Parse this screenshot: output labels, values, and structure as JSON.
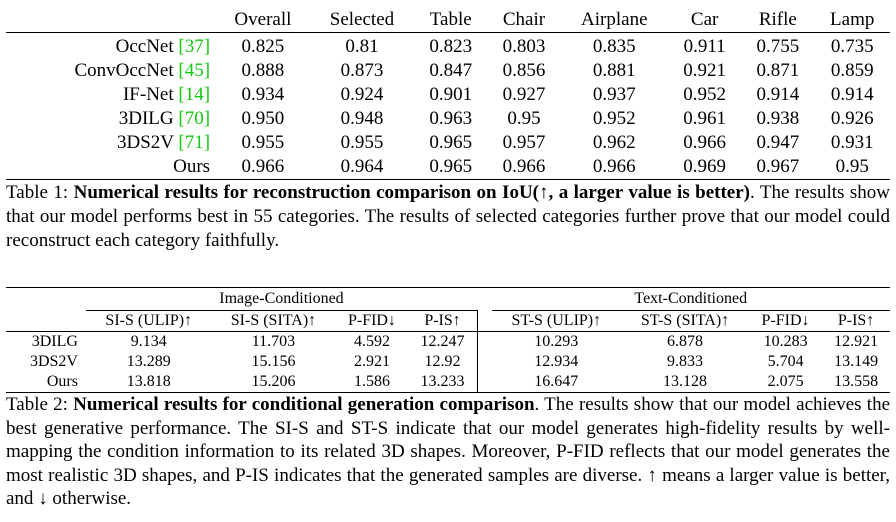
{
  "table1": {
    "headers": [
      "Overall",
      "Selected",
      "Table",
      "Chair",
      "Airplane",
      "Car",
      "Rifle",
      "Lamp"
    ],
    "rows": [
      {
        "name": "OccNet",
        "cite": "[37]",
        "values": [
          "0.825",
          "0.81",
          "0.823",
          "0.803",
          "0.835",
          "0.911",
          "0.755",
          "0.735"
        ]
      },
      {
        "name": "ConvOccNet",
        "cite": "[45]",
        "values": [
          "0.888",
          "0.873",
          "0.847",
          "0.856",
          "0.881",
          "0.921",
          "0.871",
          "0.859"
        ]
      },
      {
        "name": "IF-Net",
        "cite": "[14]",
        "values": [
          "0.934",
          "0.924",
          "0.901",
          "0.927",
          "0.937",
          "0.952",
          "0.914",
          "0.914"
        ]
      },
      {
        "name": "3DILG",
        "cite": "[70]",
        "values": [
          "0.950",
          "0.948",
          "0.963",
          "0.95",
          "0.952",
          "0.961",
          "0.938",
          "0.926"
        ]
      },
      {
        "name": "3DS2V",
        "cite": "[71]",
        "values": [
          "0.955",
          "0.955",
          "0.965",
          "0.957",
          "0.962",
          "0.966",
          "0.947",
          "0.931"
        ]
      },
      {
        "name": "Ours",
        "cite": "",
        "values": [
          "0.966",
          "0.964",
          "0.965",
          "0.966",
          "0.966",
          "0.969",
          "0.967",
          "0.95"
        ]
      }
    ],
    "caption_label": "Table 1:",
    "caption_bold": "Numerical results for reconstruction comparison on IoU(↑, a larger value is better)",
    "caption_rest": ". The results show that our model performs best in 55 categories. The results of selected categories further prove that our model could reconstruct each category faithfully."
  },
  "table2": {
    "group_image": "Image-Conditioned",
    "group_text": "Text-Conditioned",
    "image_cols": [
      "SI-S (ULIP)↑",
      "SI-S (SITA)↑",
      "P-FID↓",
      "P-IS↑"
    ],
    "text_cols": [
      "ST-S (ULIP)↑",
      "ST-S (SITA)↑",
      "P-FID↓",
      "P-IS↑"
    ],
    "rows": [
      {
        "name": "3DILG",
        "image": [
          "9.134",
          "11.703",
          "4.592",
          "12.247"
        ],
        "text": [
          "10.293",
          "6.878",
          "10.283",
          "12.921"
        ]
      },
      {
        "name": "3DS2V",
        "image": [
          "13.289",
          "15.156",
          "2.921",
          "12.92"
        ],
        "text": [
          "12.934",
          "9.833",
          "5.704",
          "13.149"
        ]
      },
      {
        "name": "Ours",
        "image": [
          "13.818",
          "15.206",
          "1.586",
          "13.233"
        ],
        "text": [
          "16.647",
          "13.128",
          "2.075",
          "13.558"
        ]
      }
    ],
    "caption_label": "Table 2:",
    "caption_bold": "Numerical results for conditional generation comparison",
    "caption_rest": ". The results show that our model achieves the best generative performance. The SI-S and ST-S indicate that our model generates high-fidelity results by well-mapping the condition information to its related 3D shapes. Moreover, P-FID reflects that our model generates the most realistic 3D shapes, and P-IS indicates that the generated samples are diverse. ↑ means a larger value is better, and ↓ otherwise."
  }
}
